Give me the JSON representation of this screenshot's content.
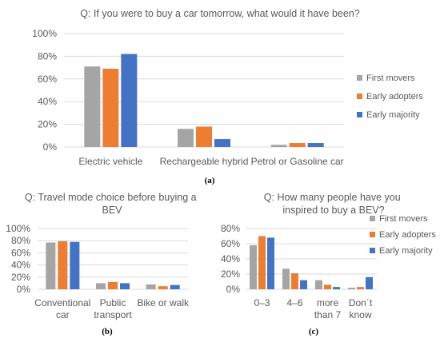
{
  "colors": {
    "series": [
      "#a5a5a5",
      "#ed7d31",
      "#4472c4"
    ],
    "grid": "#d9d9d9",
    "text": "#595959"
  },
  "chart_data": [
    {
      "type": "bar",
      "title": "Q: If you were to buy a car tomorrow, what would it have been?",
      "caption": "(a)",
      "categories": [
        "Electric vehicle",
        "Rechargeable hybrid",
        "Petrol or Gasoline car"
      ],
      "series": [
        {
          "name": "First movers",
          "values": [
            71,
            16,
            2
          ]
        },
        {
          "name": "Early adopters",
          "values": [
            69,
            18,
            3.5
          ]
        },
        {
          "name": "Early majority",
          "values": [
            82,
            7,
            3.5
          ]
        }
      ],
      "ylim": [
        0,
        100
      ],
      "yticks": [
        "0%",
        "20%",
        "40%",
        "60%",
        "80%",
        "100%"
      ],
      "legend": "right",
      "grid": true
    },
    {
      "type": "bar",
      "title": "Q: Travel mode choice before buying a BEV",
      "caption": "(b)",
      "categories": [
        "Conventional car",
        "Public transport",
        "Bike or walk"
      ],
      "series": [
        {
          "name": "First movers",
          "values": [
            77,
            10,
            8
          ]
        },
        {
          "name": "Early adopters",
          "values": [
            79,
            12,
            5
          ]
        },
        {
          "name": "Early majority",
          "values": [
            78,
            10,
            7
          ]
        }
      ],
      "ylim": [
        0,
        100
      ],
      "yticks": [
        "0%",
        "20%",
        "40%",
        "60%",
        "80%",
        "100%"
      ],
      "legend": "none",
      "grid": true
    },
    {
      "type": "bar",
      "title": "Q: How many people have you inspired to buy a BEV?",
      "caption": "(c)",
      "categories": [
        "0–3",
        "4–6",
        "more than 7",
        "Don´t know"
      ],
      "series": [
        {
          "name": "First movers",
          "values": [
            58,
            27,
            12,
            2
          ]
        },
        {
          "name": "Early adopters",
          "values": [
            70,
            21,
            6,
            3
          ]
        },
        {
          "name": "Early majority",
          "values": [
            68,
            12,
            3,
            16
          ]
        }
      ],
      "ylim": [
        0,
        80
      ],
      "yticks": [
        "0%",
        "20%",
        "40%",
        "60%",
        "80%"
      ],
      "legend": "right",
      "grid": true
    }
  ]
}
